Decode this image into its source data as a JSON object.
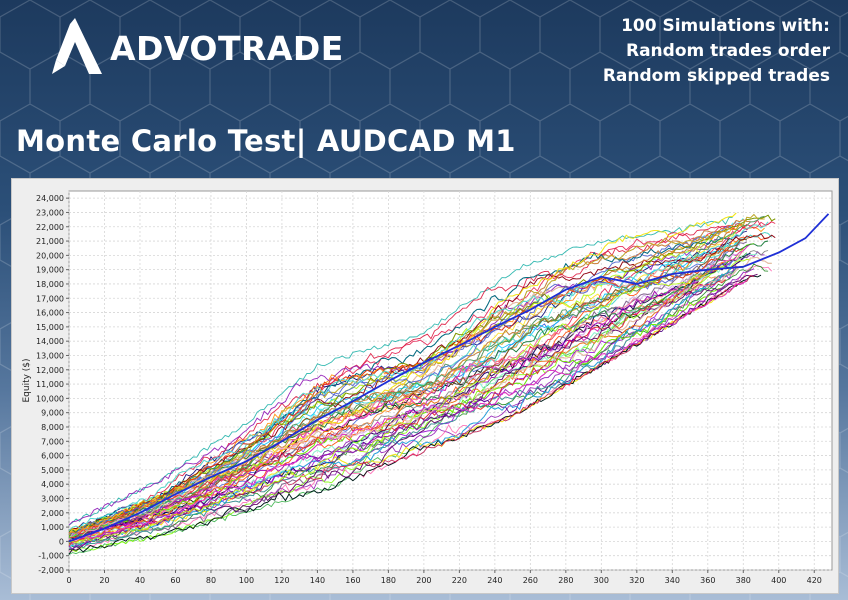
{
  "brand": {
    "name": "ADVOTRADE",
    "logo_icon": "advotrade-a-logo-icon"
  },
  "subtitle_lines": [
    "100 Simulations with:",
    "Random trades order",
    "Random skipped trades"
  ],
  "title": "Monte Carlo Test| AUDCAD M1",
  "colors": {
    "background_top": "#1d3a5e",
    "background_bottom": "#a9bdd6",
    "plot_bg": "#ffffff",
    "grid": "#d6d6d6",
    "main_series": "#1e2fd6"
  },
  "chart_data": {
    "type": "line",
    "title": "",
    "xlabel": "",
    "ylabel": "Equity ($)",
    "xlim": [
      0,
      430
    ],
    "ylim": [
      -2000,
      24500
    ],
    "x_ticks": [
      0,
      20,
      40,
      60,
      80,
      100,
      120,
      140,
      160,
      180,
      200,
      220,
      240,
      260,
      280,
      300,
      320,
      340,
      360,
      380,
      400,
      420
    ],
    "y_ticks": [
      -2000,
      -1000,
      0,
      1000,
      2000,
      3000,
      4000,
      5000,
      6000,
      7000,
      8000,
      9000,
      10000,
      11000,
      12000,
      13000,
      14000,
      15000,
      16000,
      17000,
      18000,
      19000,
      20000,
      21000,
      22000,
      23000,
      24000
    ],
    "y_tick_labels": [
      "-2,000",
      "-1,000",
      "0",
      "1,000",
      "2,000",
      "3,000",
      "4,000",
      "5,000",
      "6,000",
      "7,000",
      "8,000",
      "9,000",
      "10,000",
      "11,000",
      "12,000",
      "13,000",
      "14,000",
      "15,000",
      "16,000",
      "17,000",
      "18,000",
      "19,000",
      "20,000",
      "21,000",
      "22,000",
      "23,000",
      "24,000"
    ],
    "grid": true,
    "legend": "none",
    "simulation_count": 100,
    "main_series": {
      "x": [
        0,
        20,
        40,
        60,
        80,
        100,
        120,
        140,
        160,
        180,
        200,
        220,
        240,
        260,
        280,
        300,
        320,
        340,
        360,
        380,
        400,
        415,
        428
      ],
      "y": [
        0,
        900,
        2000,
        3300,
        4500,
        5600,
        7000,
        8500,
        9800,
        11200,
        12500,
        13700,
        15000,
        16200,
        17600,
        18500,
        18000,
        18700,
        19000,
        19200,
        20200,
        21200,
        22900
      ]
    },
    "upper_envelope": {
      "x": [
        0,
        50,
        100,
        140,
        200,
        240,
        260,
        300,
        350,
        385
      ],
      "y": [
        1200,
        4200,
        8300,
        12300,
        14600,
        18000,
        19500,
        21000,
        22000,
        23500
      ]
    },
    "lower_envelope": {
      "x": [
        0,
        50,
        100,
        150,
        200,
        250,
        300,
        350,
        385
      ],
      "y": [
        -800,
        400,
        2000,
        3900,
        6300,
        8800,
        12300,
        16000,
        18500
      ]
    }
  }
}
